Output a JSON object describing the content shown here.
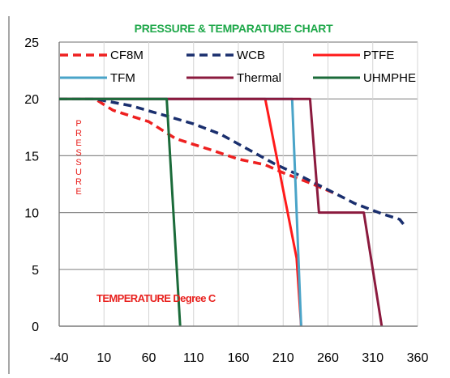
{
  "chart_data": {
    "type": "line",
    "title": "PRESSURE & TEMPARATURE CHART",
    "title_color": "#1fa84a",
    "ylabel": "PRESSURE",
    "xlabel_annotation": "TEMPERATURE Degree C",
    "annotation_color": "#e8211e",
    "xlim": [
      -40,
      360
    ],
    "ylim": [
      0,
      25
    ],
    "x_ticks": [
      "-40",
      "10",
      "60",
      "110",
      "160",
      "210",
      "260",
      "310",
      "360"
    ],
    "y_ticks": [
      "0",
      "5",
      "10",
      "15",
      "20",
      "25"
    ],
    "grid": true,
    "legend_position": "top",
    "series": [
      {
        "name": "CF8M",
        "color": "#ee2020",
        "dash": "dash",
        "x": [
          -40,
          0,
          20,
          40,
          60,
          80,
          90,
          110,
          130,
          160,
          190,
          210,
          240,
          270
        ],
        "y": [
          20,
          20,
          19,
          18.5,
          18,
          17,
          16.5,
          16,
          15.5,
          14.7,
          14.2,
          13.5,
          12.6,
          11.6
        ]
      },
      {
        "name": "WCB",
        "color": "#1a2f6e",
        "dash": "dash",
        "x": [
          -40,
          0,
          40,
          80,
          110,
          140,
          170,
          200,
          230,
          260,
          290,
          320,
          340,
          345
        ],
        "y": [
          20,
          20,
          19.4,
          18.5,
          17.8,
          16.9,
          15.6,
          14.3,
          13.2,
          12,
          10.8,
          9.9,
          9.4,
          8.9
        ]
      },
      {
        "name": "PTFE",
        "color": "#ff1a1a",
        "dash": "solid",
        "x": [
          -40,
          190,
          205,
          215,
          225,
          230
        ],
        "y": [
          20,
          20,
          14,
          10,
          6,
          0
        ]
      },
      {
        "name": "TFM",
        "color": "#4aa4c8",
        "dash": "solid",
        "x": [
          -40,
          220,
          230
        ],
        "y": [
          20,
          20,
          0
        ]
      },
      {
        "name": "Thermal",
        "color": "#8b1a3e",
        "dash": "solid",
        "x": [
          -40,
          240,
          250,
          300,
          320
        ],
        "y": [
          20,
          20,
          10,
          10,
          0
        ]
      },
      {
        "name": "UHMPHE",
        "color": "#1b6b3a",
        "dash": "solid",
        "x": [
          -40,
          80,
          95
        ],
        "y": [
          20,
          20,
          0
        ]
      }
    ]
  }
}
